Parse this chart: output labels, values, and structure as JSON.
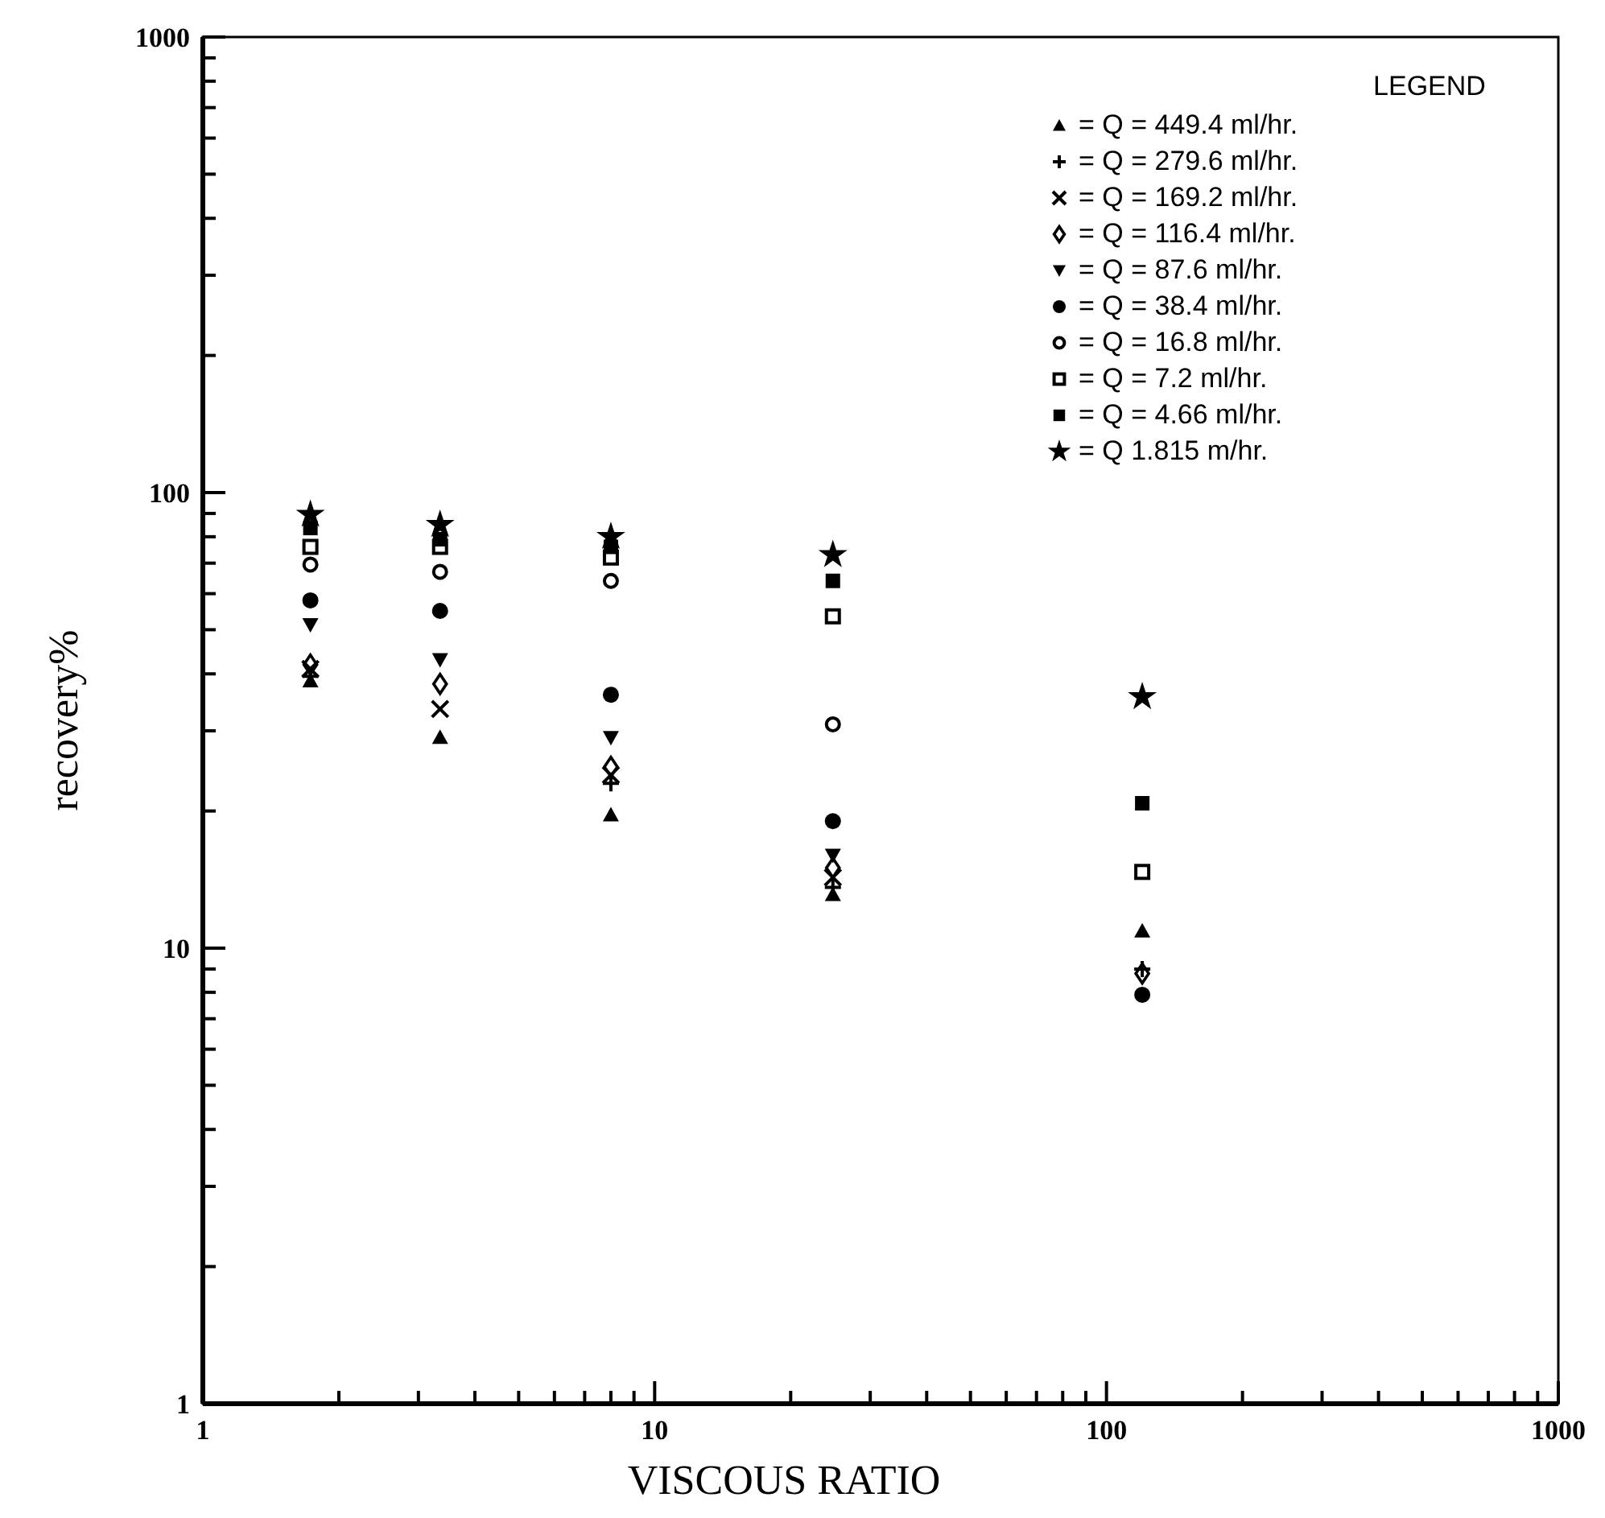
{
  "chart_data": {
    "type": "scatter",
    "xlabel": "VISCOUS RATIO",
    "ylabel": "recovery%",
    "legend_title": "LEGEND",
    "legend": "top right",
    "log": "xy",
    "grid": false,
    "xlim": [
      1,
      1000
    ],
    "ylim": [
      1,
      1000
    ],
    "xticks": [
      1,
      {
        "value": 2,
        "label": null
      },
      {
        "value": 3,
        "label": null
      },
      {
        "value": 4,
        "label": null
      },
      {
        "value": 5,
        "label": null
      },
      {
        "value": 6,
        "label": null
      },
      {
        "value": 7,
        "label": null
      },
      {
        "value": 8,
        "label": null
      },
      {
        "value": 9,
        "label": null
      },
      10,
      {
        "value": 20,
        "label": null
      },
      {
        "value": 30,
        "label": null
      },
      {
        "value": 40,
        "label": null
      },
      {
        "value": 50,
        "label": null
      },
      {
        "value": 60,
        "label": null
      },
      {
        "value": 70,
        "label": null
      },
      {
        "value": 80,
        "label": null
      },
      {
        "value": 90,
        "label": null
      },
      100,
      {
        "value": 200,
        "label": null
      },
      {
        "value": 300,
        "label": null
      },
      {
        "value": 400,
        "label": null
      },
      {
        "value": 500,
        "label": null
      },
      {
        "value": 600,
        "label": null
      },
      {
        "value": 700,
        "label": null
      },
      {
        "value": 800,
        "label": null
      },
      {
        "value": 900,
        "label": null
      },
      1000
    ],
    "yticks": [
      1,
      {
        "value": 2,
        "label": null
      },
      {
        "value": 3,
        "label": null
      },
      {
        "value": 4,
        "label": null
      },
      {
        "value": 5,
        "label": null
      },
      {
        "value": 6,
        "label": null
      },
      {
        "value": 7,
        "label": null
      },
      {
        "value": 8,
        "label": null
      },
      {
        "value": 9,
        "label": null
      },
      10,
      {
        "value": 20,
        "label": null
      },
      {
        "value": 30,
        "label": null
      },
      {
        "value": 40,
        "label": null
      },
      {
        "value": 50,
        "label": null
      },
      {
        "value": 60,
        "label": null
      },
      {
        "value": 70,
        "label": null
      },
      {
        "value": 80,
        "label": null
      },
      {
        "value": 90,
        "label": null
      },
      100,
      {
        "value": 200,
        "label": null
      },
      {
        "value": 300,
        "label": null
      },
      {
        "value": 400,
        "label": null
      },
      {
        "value": 500,
        "label": null
      },
      {
        "value": 600,
        "label": null
      },
      {
        "value": 700,
        "label": null
      },
      {
        "value": 800,
        "label": null
      },
      {
        "value": 900,
        "label": null
      },
      1000
    ],
    "x": [
      1.73,
      3.35,
      8.0,
      24.8,
      120
    ],
    "series": [
      {
        "name": "= Q = 449.4 ml/hr.",
        "color": "#000000",
        "marker": "triangle",
        "values": [
          38.6,
          29,
          19.6,
          13.1,
          10.9
        ]
      },
      {
        "name": "= Q = 279.6 ml/hr.",
        "color": "#000000",
        "marker": "cross",
        "values": [
          39.5,
          null,
          23,
          13.6,
          9.0
        ]
      },
      {
        "name": "= Q = 169.2 ml/hr.",
        "color": "#000000",
        "marker": "x",
        "values": [
          41,
          33.5,
          24,
          14.3,
          null
        ]
      },
      {
        "name": "= Q = 116.4 ml/hr.",
        "color": "#000000",
        "marker": "diamond",
        "values": [
          41.9,
          38,
          25,
          15,
          8.8
        ]
      },
      {
        "name": "= Q = 87.6 ml/hr.",
        "color": "#000000",
        "marker": "triangle-down",
        "values": [
          51.3,
          43,
          29,
          16,
          null
        ]
      },
      {
        "name": "= Q = 38.4 ml/hr.",
        "color": "#000000",
        "marker": "circle",
        "values": [
          58,
          55,
          36,
          19,
          7.9
        ]
      },
      {
        "name": "= Q = 16.8 ml/hr.",
        "color": "#000000",
        "marker": "circle-open",
        "values": [
          69.5,
          67,
          64,
          31,
          null
        ]
      },
      {
        "name": "= Q = 7.2 ml/hr.",
        "color": "#000000",
        "marker": "square-open",
        "values": [
          76,
          76,
          72,
          53.5,
          14.7
        ]
      },
      {
        "name": "= Q = 4.66 ml/hr.",
        "color": "#000000",
        "marker": "square",
        "values": [
          83.6,
          79,
          76,
          64,
          20.8
        ]
      },
      {
        "name": "= Q 1.815 m/hr.",
        "color": "#000000",
        "marker": "star",
        "values": [
          89.5,
          85,
          80,
          73,
          35.6
        ]
      }
    ]
  }
}
